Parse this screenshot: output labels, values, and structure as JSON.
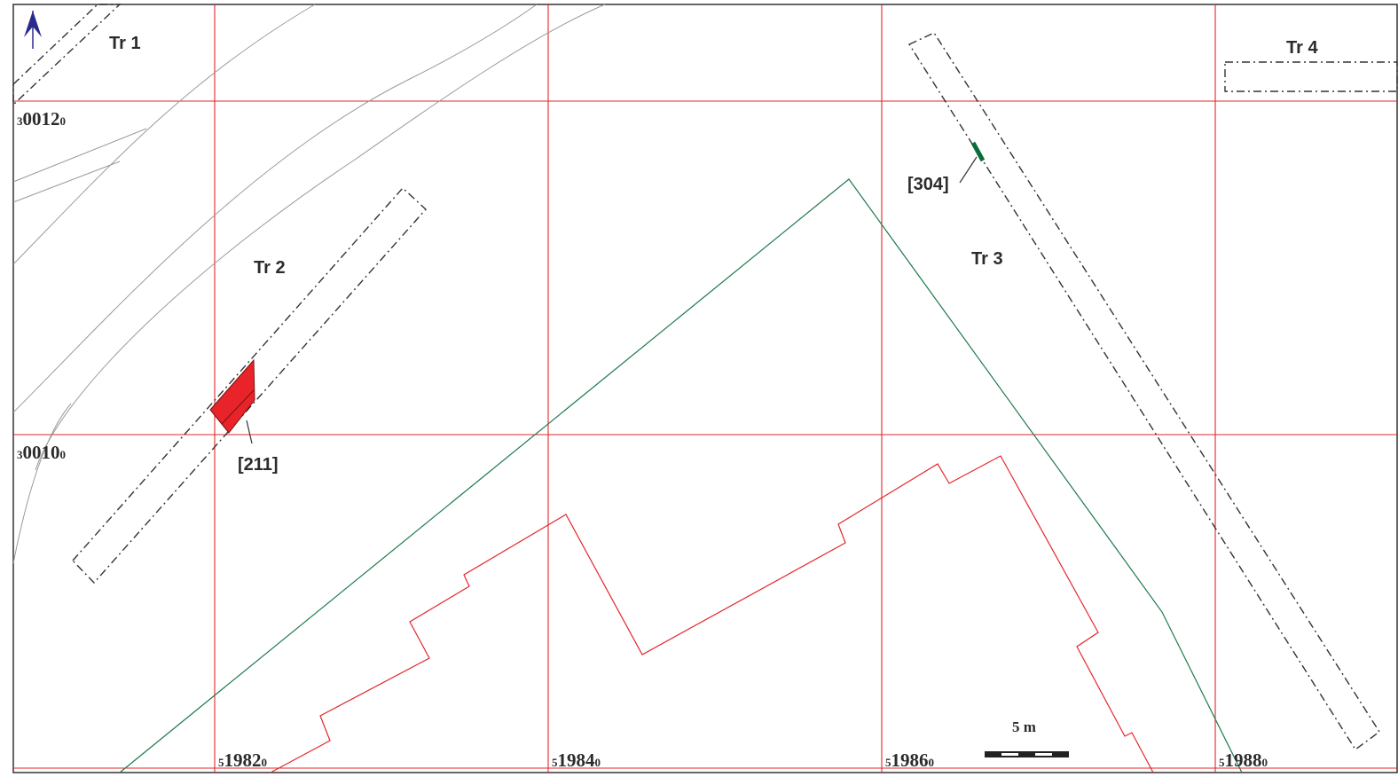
{
  "trenches": {
    "tr1": "Tr 1",
    "tr2": "Tr 2",
    "tr3": "Tr 3",
    "tr4": "Tr 4"
  },
  "features": {
    "f211": "[211]",
    "f304": "[304]"
  },
  "grid": {
    "northing_top": {
      "prefix": "3",
      "main": "0012",
      "suffix": "0"
    },
    "northing_mid": {
      "prefix": "3",
      "main": "0010",
      "suffix": "0"
    },
    "easting": [
      {
        "prefix": "5",
        "main": "1982",
        "suffix": "0"
      },
      {
        "prefix": "5",
        "main": "1984",
        "suffix": "0"
      },
      {
        "prefix": "5",
        "main": "1986",
        "suffix": "0"
      },
      {
        "prefix": "5",
        "main": "1988",
        "suffix": "0"
      }
    ]
  },
  "scale_bar": {
    "label": "5 m"
  },
  "north_arrow": {
    "icon": "north-arrow-icon",
    "color": "#2a2a8c"
  },
  "colors": {
    "grid": "#e3262b",
    "building": "#e3262b",
    "boundary": "#1f7a4d",
    "feature_211": "#e8242a",
    "feature_304": "#0b6b3a",
    "roads": "#9a9a9a"
  }
}
